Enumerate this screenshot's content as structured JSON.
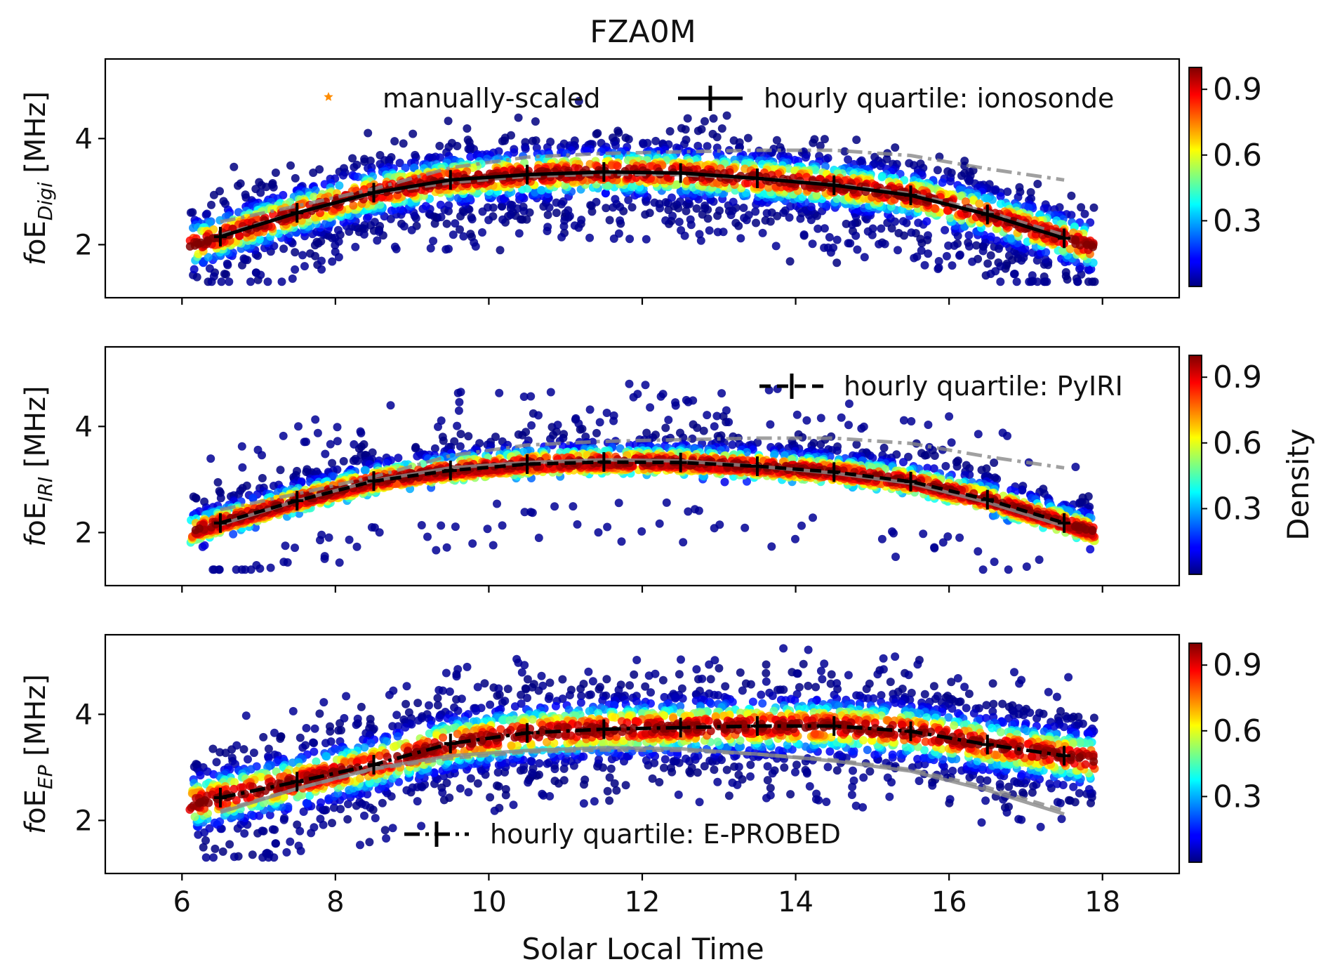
{
  "chart_data": {
    "type": "scatter",
    "title": "FZA0M",
    "xlabel": "Solar Local Time",
    "xlim": [
      5,
      19
    ],
    "x_ticks": [
      6,
      8,
      10,
      12,
      14,
      16,
      18
    ],
    "x_tick_labels": [
      "6",
      "8",
      "10",
      "12",
      "14",
      "16",
      "18"
    ],
    "shared_x": true,
    "colorbar": {
      "label": "Density",
      "colormap": "jet",
      "ticks": [
        0.3,
        0.6,
        0.9
      ],
      "tick_labels": [
        "0.3",
        "0.6",
        "0.9"
      ],
      "range": [
        0,
        1
      ]
    },
    "hour_centers": [
      6.5,
      7.5,
      8.5,
      9.5,
      10.5,
      11.5,
      12.5,
      13.5,
      14.5,
      15.5,
      16.5,
      17.5
    ],
    "quartiles": {
      "ionosonde": [
        2.15,
        2.6,
        2.98,
        3.22,
        3.32,
        3.37,
        3.35,
        3.25,
        3.12,
        2.93,
        2.57,
        2.12
      ],
      "pyiri": [
        2.18,
        2.6,
        2.97,
        3.17,
        3.29,
        3.33,
        3.32,
        3.25,
        3.14,
        2.96,
        2.62,
        2.18
      ],
      "eprobed": [
        2.43,
        2.73,
        3.05,
        3.45,
        3.65,
        3.72,
        3.75,
        3.78,
        3.78,
        3.68,
        3.43,
        3.22
      ]
    },
    "panels": [
      {
        "ylabel_prefix": "foE",
        "ylabel_subscript": "Digi",
        "ylabel_unit": " [MHz]",
        "ylim": [
          1.0,
          5.5
        ],
        "y_ticks": [
          2,
          4
        ],
        "y_tick_labels": [
          "2",
          "4"
        ],
        "density_series": "ionosonde",
        "lines": [
          {
            "series": "ionosonde",
            "style": "solid",
            "color": "#000000",
            "errorbars": true
          },
          {
            "series": "pyiri",
            "style": "dashed",
            "color": "#888888",
            "errorbars": false
          },
          {
            "series": "eprobed",
            "style": "dashdot",
            "color": "#888888",
            "errorbars": false
          }
        ],
        "legend": [
          {
            "marker": "star",
            "color": "#ff8c00",
            "label": "manually-scaled"
          },
          {
            "marker": "errorbar-solid",
            "color": "#000000",
            "label": "hourly quartile: ionosonde"
          }
        ],
        "legend_loc": "upper center"
      },
      {
        "ylabel_prefix": "foE",
        "ylabel_subscript": "IRI",
        "ylabel_unit": " [MHz]",
        "ylim": [
          1.0,
          5.5
        ],
        "y_ticks": [
          2,
          4
        ],
        "y_tick_labels": [
          "2",
          "4"
        ],
        "density_series": "pyiri",
        "lines": [
          {
            "series": "pyiri",
            "style": "dashed",
            "color": "#000000",
            "errorbars": true
          },
          {
            "series": "ionosonde",
            "style": "solid",
            "color": "#888888",
            "errorbars": false
          },
          {
            "series": "eprobed",
            "style": "dashdot",
            "color": "#888888",
            "errorbars": false
          }
        ],
        "legend": [
          {
            "marker": "errorbar-dashed",
            "color": "#000000",
            "label": "hourly quartile: PyIRI"
          }
        ],
        "legend_loc": "upper right"
      },
      {
        "ylabel_prefix": "foE",
        "ylabel_subscript": "EP",
        "ylabel_unit": " [MHz]",
        "ylim": [
          1.0,
          5.5
        ],
        "y_ticks": [
          2,
          4
        ],
        "y_tick_labels": [
          "2",
          "4"
        ],
        "density_series": "eprobed",
        "lines": [
          {
            "series": "eprobed",
            "style": "dashdot",
            "color": "#000000",
            "errorbars": true
          },
          {
            "series": "ionosonde",
            "style": "solid",
            "color": "#888888",
            "errorbars": false
          },
          {
            "series": "pyiri",
            "style": "dashed",
            "color": "#888888",
            "errorbars": false
          }
        ],
        "legend": [
          {
            "marker": "errorbar-dashdot",
            "color": "#000000",
            "label": "hourly quartile: E-PROBED"
          }
        ],
        "legend_loc": "lower center"
      }
    ]
  }
}
